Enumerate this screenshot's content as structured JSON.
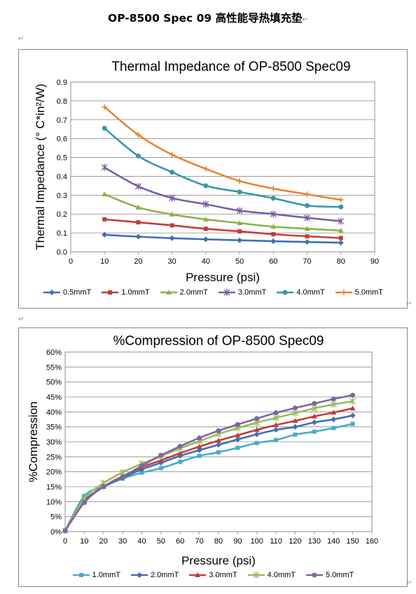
{
  "document": {
    "title": "OP-8500 Spec 09  高性能导热填充垫",
    "end_mark": "↵",
    "para_mark": "↵"
  },
  "chart_data": [
    {
      "type": "line",
      "title": "Thermal Impedance of OP-8500 Spec09",
      "xlabel": "Pressure (psi)",
      "ylabel": "Thermal Impedance (° C*in²/W)",
      "xlim": [
        0,
        90
      ],
      "ylim": [
        0,
        0.9
      ],
      "x_ticks": [
        "0",
        "10",
        "20",
        "30",
        "40",
        "50",
        "60",
        "70",
        "80",
        "90"
      ],
      "y_ticks": [
        "0.0",
        "0.1",
        "0.2",
        "0.3",
        "0.4",
        "0.5",
        "0.6",
        "0.7",
        "0.8",
        "0.9"
      ],
      "grid": "horizontal",
      "legend_position": "bottom",
      "x": [
        10,
        20,
        30,
        40,
        50,
        60,
        70,
        80
      ],
      "series": [
        {
          "name": "0.5mmT",
          "color": "#3f6fb5",
          "marker": "diamond",
          "values": [
            0.09,
            0.08,
            0.072,
            0.066,
            0.061,
            0.056,
            0.052,
            0.048
          ]
        },
        {
          "name": "1.0mmT",
          "color": "#be3f3b",
          "marker": "square",
          "values": [
            0.172,
            0.156,
            0.14,
            0.122,
            0.108,
            0.093,
            0.082,
            0.073
          ]
        },
        {
          "name": "2.0mmT",
          "color": "#8db04b",
          "marker": "triangle",
          "values": [
            0.305,
            0.235,
            0.198,
            0.172,
            0.152,
            0.133,
            0.122,
            0.112
          ]
        },
        {
          "name": "3.0mmT",
          "color": "#7c5fa1",
          "marker": "star",
          "values": [
            0.447,
            0.347,
            0.285,
            0.252,
            0.218,
            0.2,
            0.18,
            0.162
          ]
        },
        {
          "name": "4.0mmT",
          "color": "#3796ad",
          "marker": "circle",
          "values": [
            0.655,
            0.508,
            0.422,
            0.35,
            0.317,
            0.284,
            0.245,
            0.238
          ]
        },
        {
          "name": "5.0mmT",
          "color": "#e8842f",
          "marker": "plus",
          "values": [
            0.768,
            0.62,
            0.515,
            0.44,
            0.375,
            0.335,
            0.305,
            0.275
          ]
        }
      ]
    },
    {
      "type": "line",
      "title": "%Compression of OP-8500 Spec09",
      "xlabel": "Pressure (psi)",
      "ylabel": "%Compression",
      "xlim": [
        0,
        160
      ],
      "ylim": [
        0,
        60
      ],
      "x_ticks": [
        "0",
        "10",
        "20",
        "30",
        "40",
        "50",
        "60",
        "70",
        "80",
        "90",
        "100",
        "110",
        "120",
        "130",
        "140",
        "150",
        "160"
      ],
      "y_ticks": [
        "0%",
        "5%",
        "10%",
        "15%",
        "20%",
        "25%",
        "30%",
        "35%",
        "40%",
        "45%",
        "50%",
        "55%",
        "60%"
      ],
      "grid": "horizontal",
      "legend_position": "bottom",
      "x": [
        0,
        10,
        20,
        30,
        40,
        50,
        60,
        70,
        80,
        90,
        100,
        110,
        120,
        130,
        140,
        150
      ],
      "series": [
        {
          "name": "1.0mmT",
          "color": "#4aacc5",
          "marker": "square",
          "values": [
            0.3,
            11.9,
            15.0,
            17.7,
            19.7,
            21.2,
            23.3,
            25.3,
            26.5,
            28.0,
            29.6,
            30.6,
            32.4,
            33.4,
            34.6,
            36.0
          ]
        },
        {
          "name": "2.0mmT",
          "color": "#3f6fb5",
          "marker": "diamond",
          "values": [
            0.3,
            10.2,
            15.0,
            18.0,
            20.8,
            23.0,
            25.3,
            27.2,
            29.0,
            30.8,
            32.5,
            34.0,
            35.0,
            36.5,
            37.5,
            38.8
          ]
        },
        {
          "name": "3.0mmT",
          "color": "#be3f3b",
          "marker": "triangle",
          "values": [
            0.3,
            9.8,
            15.0,
            18.5,
            21.5,
            23.8,
            26.2,
            28.4,
            30.4,
            32.2,
            34.0,
            35.6,
            37.0,
            38.5,
            39.8,
            41.2
          ]
        },
        {
          "name": "4.0mmT",
          "color": "#9bbb59",
          "marker": "star",
          "values": [
            0.3,
            11.0,
            16.2,
            19.8,
            22.7,
            25.2,
            27.8,
            30.2,
            32.6,
            34.6,
            36.4,
            38.0,
            39.6,
            41.2,
            42.5,
            43.6
          ]
        },
        {
          "name": "5.0mmT",
          "color": "#8064a2",
          "marker": "circle",
          "values": [
            0.3,
            9.7,
            15.0,
            18.3,
            22.0,
            25.5,
            28.5,
            31.3,
            33.7,
            35.8,
            37.8,
            39.7,
            41.3,
            42.8,
            44.3,
            45.6
          ]
        }
      ]
    }
  ]
}
